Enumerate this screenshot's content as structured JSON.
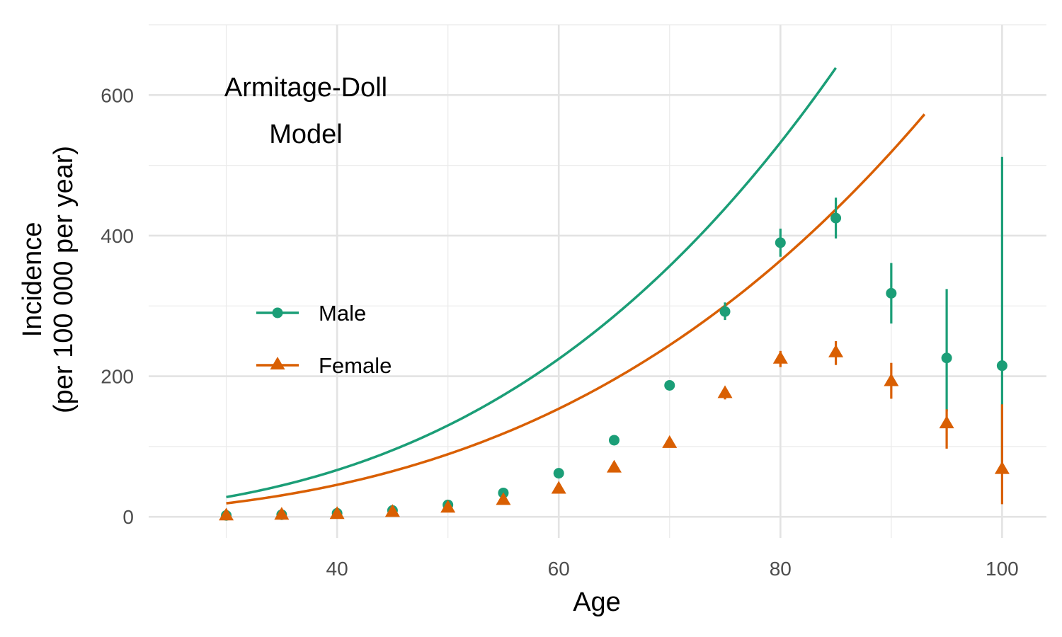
{
  "chart_data": {
    "type": "scatter",
    "xlabel": "Age",
    "ylabel_lines": [
      "Incidence",
      "(per 100 000 per year)"
    ],
    "xlim": [
      23,
      104
    ],
    "ylim": [
      -30,
      700
    ],
    "x_ticks": [
      40,
      60,
      80,
      100
    ],
    "y_ticks": [
      0,
      200,
      400,
      600
    ],
    "x_minor": [
      30,
      50,
      70,
      90
    ],
    "y_minor": [
      100,
      300,
      500,
      700
    ],
    "grid": true,
    "legend_placement": "left-center",
    "annotation_lines": [
      "Armitage-Doll",
      "Model"
    ],
    "series": [
      {
        "name": "Male",
        "marker": "circle",
        "color": "#1b9e77",
        "points": [
          {
            "x": 30,
            "y": 2,
            "lo": 1,
            "hi": 3
          },
          {
            "x": 35,
            "y": 3,
            "lo": 2,
            "hi": 4
          },
          {
            "x": 40,
            "y": 5,
            "lo": 4,
            "hi": 7
          },
          {
            "x": 45,
            "y": 9,
            "lo": 7,
            "hi": 11
          },
          {
            "x": 50,
            "y": 17,
            "lo": 15,
            "hi": 20
          },
          {
            "x": 55,
            "y": 34,
            "lo": 31,
            "hi": 38
          },
          {
            "x": 60,
            "y": 62,
            "lo": 58,
            "hi": 66
          },
          {
            "x": 65,
            "y": 109,
            "lo": 104,
            "hi": 114
          },
          {
            "x": 70,
            "y": 187,
            "lo": 180,
            "hi": 194
          },
          {
            "x": 75,
            "y": 292,
            "lo": 280,
            "hi": 305
          },
          {
            "x": 80,
            "y": 390,
            "lo": 370,
            "hi": 410
          },
          {
            "x": 85,
            "y": 425,
            "lo": 396,
            "hi": 454
          },
          {
            "x": 90,
            "y": 318,
            "lo": 275,
            "hi": 361
          },
          {
            "x": 95,
            "y": 226,
            "lo": 150,
            "hi": 324
          },
          {
            "x": 100,
            "y": 215,
            "lo": 70,
            "hi": 512
          }
        ],
        "fit": {
          "coef": 0.00104,
          "power": 3,
          "x_start": 30,
          "x_end": 85
        }
      },
      {
        "name": "Female",
        "marker": "triangle",
        "color": "#d95f02",
        "points": [
          {
            "x": 30,
            "y": 1,
            "lo": 0,
            "hi": 2
          },
          {
            "x": 35,
            "y": 2,
            "lo": 1,
            "hi": 3
          },
          {
            "x": 40,
            "y": 3,
            "lo": 2,
            "hi": 4
          },
          {
            "x": 45,
            "y": 6,
            "lo": 5,
            "hi": 8
          },
          {
            "x": 50,
            "y": 12,
            "lo": 10,
            "hi": 14
          },
          {
            "x": 55,
            "y": 23,
            "lo": 21,
            "hi": 26
          },
          {
            "x": 60,
            "y": 39,
            "lo": 36,
            "hi": 42
          },
          {
            "x": 65,
            "y": 69,
            "lo": 65,
            "hi": 73
          },
          {
            "x": 70,
            "y": 104,
            "lo": 99,
            "hi": 110
          },
          {
            "x": 75,
            "y": 175,
            "lo": 167,
            "hi": 184
          },
          {
            "x": 80,
            "y": 224,
            "lo": 213,
            "hi": 236
          },
          {
            "x": 85,
            "y": 233,
            "lo": 216,
            "hi": 250
          },
          {
            "x": 90,
            "y": 192,
            "lo": 168,
            "hi": 219
          },
          {
            "x": 95,
            "y": 132,
            "lo": 97,
            "hi": 153
          },
          {
            "x": 100,
            "y": 67,
            "lo": 18,
            "hi": 160
          }
        ],
        "fit": {
          "coef": 0.000712,
          "power": 3,
          "x_start": 30,
          "x_end": 93
        }
      }
    ]
  }
}
